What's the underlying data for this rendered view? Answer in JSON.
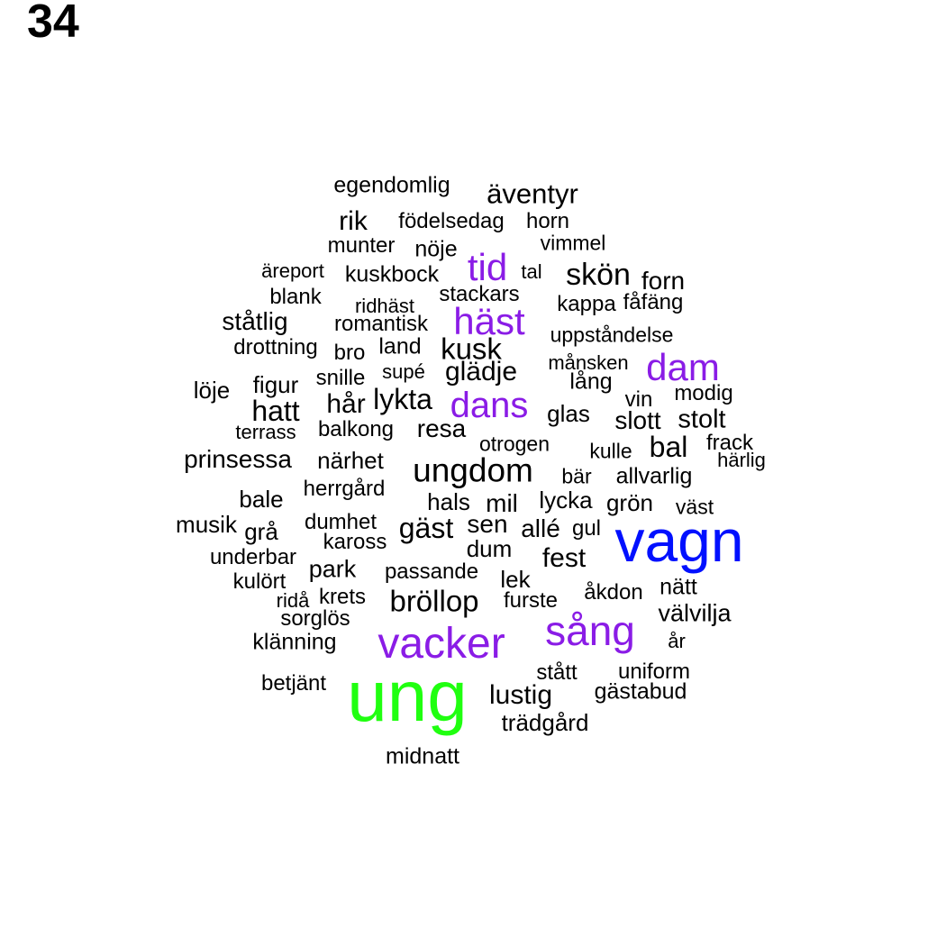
{
  "page_number": "34",
  "colors": {
    "black": "#000000",
    "purple": "#8a1ce6",
    "blue": "#0010ff",
    "green": "#20ff10"
  },
  "words": [
    {
      "text": "egendomlig",
      "color": "black"
    },
    {
      "text": "äventyr",
      "color": "black"
    },
    {
      "text": "rik",
      "color": "black"
    },
    {
      "text": "födelsedag",
      "color": "black"
    },
    {
      "text": "horn",
      "color": "black"
    },
    {
      "text": "munter",
      "color": "black"
    },
    {
      "text": "nöje",
      "color": "black"
    },
    {
      "text": "vimmel",
      "color": "black"
    },
    {
      "text": "tid",
      "color": "purple"
    },
    {
      "text": "äreport",
      "color": "black"
    },
    {
      "text": "kuskbock",
      "color": "black"
    },
    {
      "text": "tal",
      "color": "black"
    },
    {
      "text": "skön",
      "color": "black"
    },
    {
      "text": "forn",
      "color": "black"
    },
    {
      "text": "blank",
      "color": "black"
    },
    {
      "text": "stackars",
      "color": "black"
    },
    {
      "text": "ridhäst",
      "color": "black"
    },
    {
      "text": "kappa",
      "color": "black"
    },
    {
      "text": "fåfäng",
      "color": "black"
    },
    {
      "text": "ståtlig",
      "color": "black"
    },
    {
      "text": "romantisk",
      "color": "black"
    },
    {
      "text": "häst",
      "color": "purple"
    },
    {
      "text": "uppståndelse",
      "color": "black"
    },
    {
      "text": "drottning",
      "color": "black"
    },
    {
      "text": "bro",
      "color": "black"
    },
    {
      "text": "land",
      "color": "black"
    },
    {
      "text": "kusk",
      "color": "black"
    },
    {
      "text": "månsken",
      "color": "black"
    },
    {
      "text": "dam",
      "color": "purple"
    },
    {
      "text": "löje",
      "color": "black"
    },
    {
      "text": "figur",
      "color": "black"
    },
    {
      "text": "snille",
      "color": "black"
    },
    {
      "text": "supé",
      "color": "black"
    },
    {
      "text": "glädje",
      "color": "black"
    },
    {
      "text": "lång",
      "color": "black"
    },
    {
      "text": "modig",
      "color": "black"
    },
    {
      "text": "hår",
      "color": "black"
    },
    {
      "text": "lykta",
      "color": "black"
    },
    {
      "text": "dans",
      "color": "purple"
    },
    {
      "text": "vin",
      "color": "black"
    },
    {
      "text": "hatt",
      "color": "black"
    },
    {
      "text": "glas",
      "color": "black"
    },
    {
      "text": "slott",
      "color": "black"
    },
    {
      "text": "stolt",
      "color": "black"
    },
    {
      "text": "terrass",
      "color": "black"
    },
    {
      "text": "balkong",
      "color": "black"
    },
    {
      "text": "resa",
      "color": "black"
    },
    {
      "text": "otrogen",
      "color": "black"
    },
    {
      "text": "bal",
      "color": "black"
    },
    {
      "text": "frack",
      "color": "black"
    },
    {
      "text": "prinsessa",
      "color": "black"
    },
    {
      "text": "närhet",
      "color": "black"
    },
    {
      "text": "ungdom",
      "color": "black"
    },
    {
      "text": "kulle",
      "color": "black"
    },
    {
      "text": "härlig",
      "color": "black"
    },
    {
      "text": "herrgård",
      "color": "black"
    },
    {
      "text": "bär",
      "color": "black"
    },
    {
      "text": "allvarlig",
      "color": "black"
    },
    {
      "text": "bale",
      "color": "black"
    },
    {
      "text": "hals",
      "color": "black"
    },
    {
      "text": "mil",
      "color": "black"
    },
    {
      "text": "lycka",
      "color": "black"
    },
    {
      "text": "grön",
      "color": "black"
    },
    {
      "text": "väst",
      "color": "black"
    },
    {
      "text": "musik",
      "color": "black"
    },
    {
      "text": "grå",
      "color": "black"
    },
    {
      "text": "dumhet",
      "color": "black"
    },
    {
      "text": "gäst",
      "color": "black"
    },
    {
      "text": "sen",
      "color": "black"
    },
    {
      "text": "allé",
      "color": "black"
    },
    {
      "text": "gul",
      "color": "black"
    },
    {
      "text": "vagn",
      "color": "blue"
    },
    {
      "text": "kaross",
      "color": "black"
    },
    {
      "text": "dum",
      "color": "black"
    },
    {
      "text": "underbar",
      "color": "black"
    },
    {
      "text": "fest",
      "color": "black"
    },
    {
      "text": "park",
      "color": "black"
    },
    {
      "text": "passande",
      "color": "black"
    },
    {
      "text": "kulört",
      "color": "black"
    },
    {
      "text": "lek",
      "color": "black"
    },
    {
      "text": "nätt",
      "color": "black"
    },
    {
      "text": "ridå",
      "color": "black"
    },
    {
      "text": "krets",
      "color": "black"
    },
    {
      "text": "bröllop",
      "color": "black"
    },
    {
      "text": "furste",
      "color": "black"
    },
    {
      "text": "åkdon",
      "color": "black"
    },
    {
      "text": "välvilja",
      "color": "black"
    },
    {
      "text": "sorglös",
      "color": "black"
    },
    {
      "text": "sång",
      "color": "purple"
    },
    {
      "text": "klänning",
      "color": "black"
    },
    {
      "text": "vacker",
      "color": "purple"
    },
    {
      "text": "år",
      "color": "black"
    },
    {
      "text": "stått",
      "color": "black"
    },
    {
      "text": "uniform",
      "color": "black"
    },
    {
      "text": "betjänt",
      "color": "black"
    },
    {
      "text": "ung",
      "color": "green"
    },
    {
      "text": "lustig",
      "color": "black"
    },
    {
      "text": "gästabud",
      "color": "black"
    },
    {
      "text": "trädgård",
      "color": "black"
    },
    {
      "text": "midnatt",
      "color": "black"
    }
  ]
}
